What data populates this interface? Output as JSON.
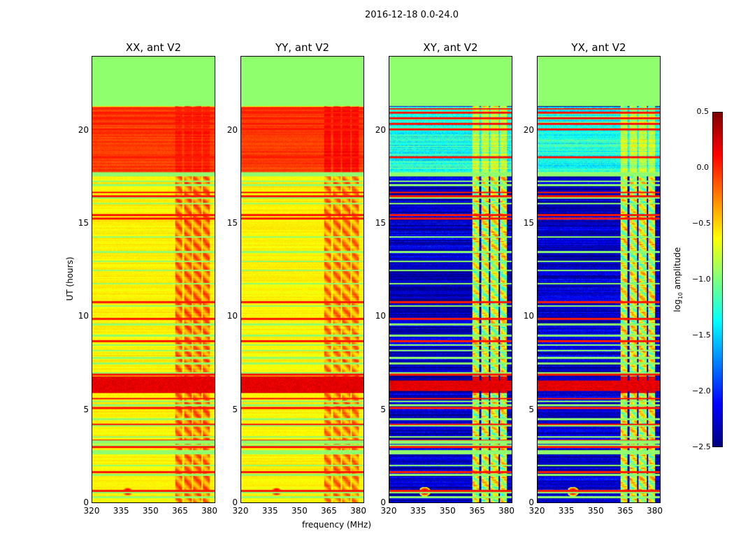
{
  "chart_data": {
    "type": "heatmap",
    "title": "2016-12-18 0.0-24.0",
    "xlabel": "frequency (MHz)",
    "ylabel": "UT (hours)",
    "xlim": [
      320,
      383
    ],
    "ylim": [
      0,
      24
    ],
    "xticks": [
      "320",
      "335",
      "350",
      "365",
      "380"
    ],
    "yticks": [
      "0",
      "5",
      "10",
      "15",
      "20"
    ],
    "panels": [
      {
        "title": "XX, ant V2",
        "background": -0.6,
        "subband": -0.25,
        "evening": -0.05,
        "subband_evening": 0.05
      },
      {
        "title": "YY, ant V2",
        "background": -0.6,
        "subband": -0.3,
        "evening": -0.05,
        "subband_evening": 0.1
      },
      {
        "title": "XY, ant V2",
        "background": -2.3,
        "subband": -0.75,
        "evening": -1.3,
        "subband_evening": -0.8
      },
      {
        "title": "YX, ant V2",
        "background": -2.3,
        "subband": -0.75,
        "evening": -1.3,
        "subband_evening": -0.8
      }
    ],
    "subband_mhz": [
      362.5,
      380.5
    ],
    "subband_gaps_mhz": [
      [
        366.2,
        367.0
      ],
      [
        371.0,
        371.7
      ],
      [
        375.9,
        376.6
      ]
    ],
    "evening_hours": [
      17.8,
      21.3
    ],
    "flagged_value": -0.95,
    "flagged_blocks_hours": [
      [
        21.35,
        24.0
      ],
      [
        2.62,
        2.82
      ],
      [
        17.55,
        17.8
      ]
    ],
    "flagged_lines_hours": [
      1.5,
      2.0,
      3.1,
      3.2,
      3.3,
      3.55,
      4.15,
      4.5,
      5.25,
      5.45,
      7.0,
      7.5,
      7.8,
      8.2,
      8.5,
      9.0,
      9.6,
      10.6,
      11.8,
      12.5,
      13.0,
      13.5,
      14.3,
      16.1,
      16.4,
      17.1,
      17.3,
      22.5,
      23.0,
      23.5,
      23.8,
      21.6,
      0.3,
      0.55
    ],
    "hot_band_hours": [
      5.9,
      6.8
    ],
    "hot_value": 0.3,
    "red_lines_value": 0.05,
    "red_lines_hours": [
      0.65,
      1.65,
      3.0,
      3.35,
      4.2,
      5.1,
      5.6,
      6.9,
      8.7,
      9.9,
      10.8,
      15.3,
      15.5,
      16.5,
      16.7,
      18.6,
      20.1,
      20.4,
      20.7,
      21.0,
      21.2,
      22.6
    ],
    "rfi_source": {
      "freq_mhz": 338,
      "hour": 0.6,
      "value": 0.4
    },
    "colorbar": {
      "label": "log10 amplitude",
      "label_main": "log",
      "label_sub": "10",
      "label_rest": " amplitude",
      "range": [
        -2.5,
        0.5
      ],
      "ticks": [
        "0.5",
        "0.0",
        "−0.5",
        "−1.0",
        "−1.5",
        "−2.0",
        "−2.5"
      ],
      "colormap": "jet"
    }
  }
}
